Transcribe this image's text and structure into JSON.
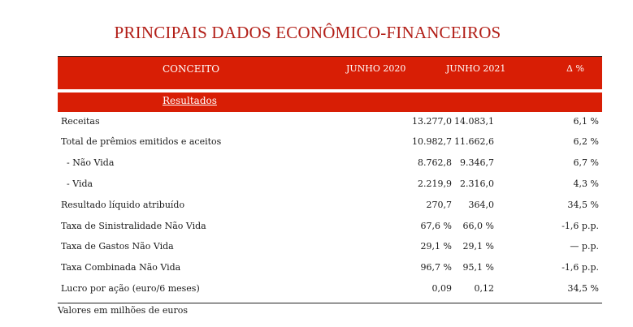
{
  "title": "PRINCIPAIS DADOS ECONÔMICO-FINANCEIROS",
  "header": {
    "concept": "CONCEITO",
    "col1": "JUNHO 2020",
    "col2": "JUNHO 2021",
    "col3": "Δ %"
  },
  "section": "Resultados",
  "rows": [
    {
      "label": "Receitas",
      "v2020": "13.277,0",
      "v2021": "14.083,1",
      "delta": "6,1 %"
    },
    {
      "label": "Total de prêmios emitidos e aceitos",
      "v2020": "10.982,7",
      "v2021": "11.662,6",
      "delta": "6,2 %"
    },
    {
      "label": "  - Não Vida",
      "v2020": "8.762,8",
      "v2021": "9.346,7",
      "delta": "6,7 %"
    },
    {
      "label": "  - Vida",
      "v2020": "2.219,9",
      "v2021": "2.316,0",
      "delta": "4,3 %"
    },
    {
      "label": "Resultado líquido atribuído",
      "v2020": "270,7",
      "v2021": "364,0",
      "delta": "34,5 %"
    },
    {
      "label": "Taxa de Sinistralidade Não Vida",
      "v2020": "67,6 %",
      "v2021": "66,0 %",
      "delta": "-1,6 p.p."
    },
    {
      "label": "Taxa de Gastos Não Vida",
      "v2020": "29,1 %",
      "v2021": "29,1 %",
      "delta": "— p.p."
    },
    {
      "label": "Taxa Combinada Não Vida",
      "v2020": "96,7 %",
      "v2021": "95,1 %",
      "delta": "-1,6 p.p."
    },
    {
      "label": "Lucro por ação (euro/6 meses)",
      "v2020": "0,09",
      "v2021": "0,12",
      "delta": "34,5 %"
    }
  ],
  "note": "Valores em milhões de euros"
}
